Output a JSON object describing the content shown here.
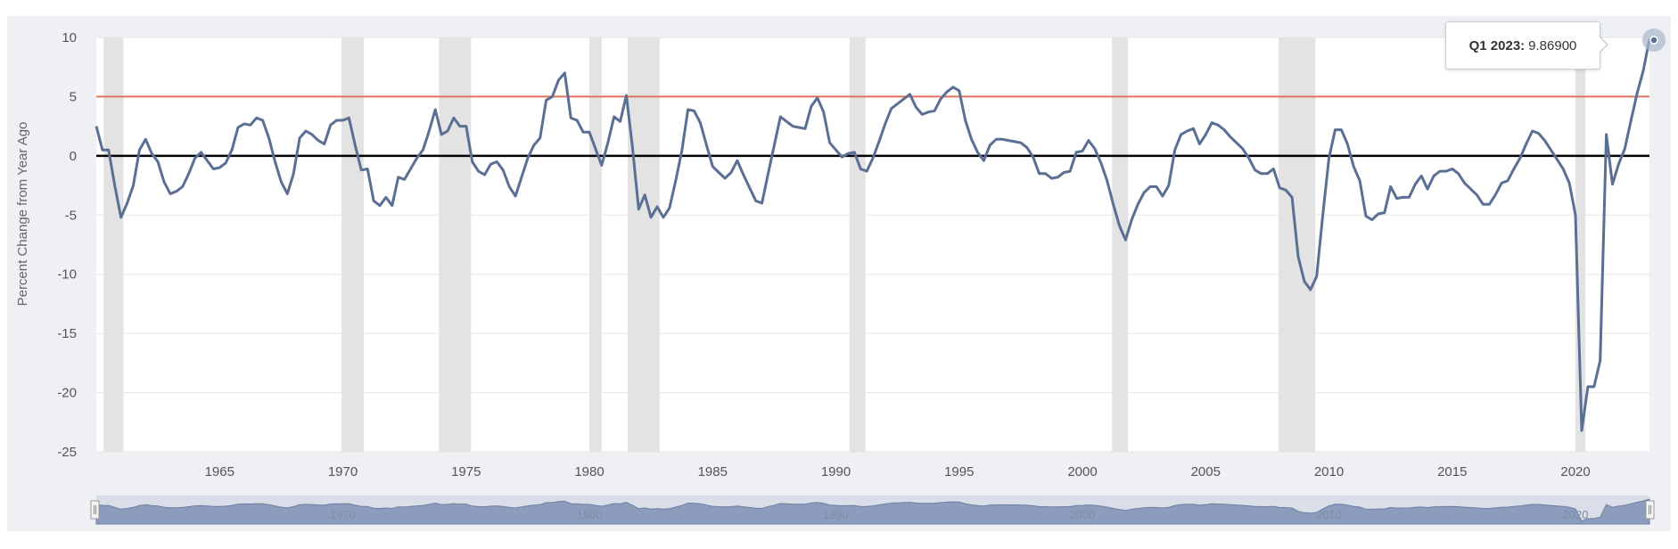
{
  "chart_data": {
    "type": "line",
    "title": "",
    "xlabel": "",
    "ylabel": "Percent Change from Year Ago",
    "ylim": [
      -25,
      10
    ],
    "xlim": [
      1960.0,
      2023.0
    ],
    "yticks": [
      "10",
      "5",
      "0",
      "-5",
      "-10",
      "-15",
      "-20",
      "-25"
    ],
    "xticks": [
      "1965",
      "1970",
      "1975",
      "1980",
      "1985",
      "1990",
      "1995",
      "2000",
      "2005",
      "2010",
      "2015",
      "2020"
    ],
    "navigator_labels": [
      "1970",
      "1980",
      "1990",
      "2000",
      "2010",
      "2020"
    ],
    "grid": "horizontal",
    "legend": "none",
    "reference_lines": [
      {
        "y": 5,
        "color": "#e0735e"
      },
      {
        "y": 0,
        "color": "#000000"
      }
    ],
    "recessions": [
      [
        1960.3,
        1961.1
      ],
      [
        1969.95,
        1970.85
      ],
      [
        1973.9,
        1975.2
      ],
      [
        1980.0,
        1980.5
      ],
      [
        1981.55,
        1982.85
      ],
      [
        1990.55,
        1991.2
      ],
      [
        2001.2,
        2001.85
      ],
      [
        2007.95,
        2009.45
      ],
      [
        2020.0,
        2020.4
      ]
    ],
    "series": [
      {
        "color": "#5b6f94",
        "x": [
          1960.0,
          1960.25,
          1960.5,
          1960.75,
          1961.0,
          1961.25,
          1961.5,
          1961.75,
          1962.0,
          1962.25,
          1962.5,
          1962.75,
          1963.0,
          1963.25,
          1963.5,
          1963.75,
          1964.0,
          1964.25,
          1964.5,
          1964.75,
          1965.0,
          1965.25,
          1965.5,
          1965.75,
          1966.0,
          1966.25,
          1966.5,
          1966.75,
          1967.0,
          1967.25,
          1967.5,
          1967.75,
          1968.0,
          1968.25,
          1968.5,
          1968.75,
          1969.0,
          1969.25,
          1969.5,
          1969.75,
          1970.0,
          1970.25,
          1970.5,
          1970.75,
          1971.0,
          1971.25,
          1971.5,
          1971.75,
          1972.0,
          1972.25,
          1972.5,
          1972.75,
          1973.0,
          1973.25,
          1973.5,
          1973.75,
          1974.0,
          1974.25,
          1974.5,
          1974.75,
          1975.0,
          1975.25,
          1975.5,
          1975.75,
          1976.0,
          1976.25,
          1976.5,
          1976.75,
          1977.0,
          1977.25,
          1977.5,
          1977.75,
          1978.0,
          1978.25,
          1978.5,
          1978.75,
          1979.0,
          1979.25,
          1979.5,
          1979.75,
          1980.0,
          1980.25,
          1980.5,
          1980.75,
          1981.0,
          1981.25,
          1981.5,
          1981.75,
          1982.0,
          1982.25,
          1982.5,
          1982.75,
          1983.0,
          1983.25,
          1983.5,
          1983.75,
          1984.0,
          1984.25,
          1984.5,
          1984.75,
          1985.0,
          1985.25,
          1985.5,
          1985.75,
          1986.0,
          1986.25,
          1986.5,
          1986.75,
          1987.0,
          1987.25,
          1987.5,
          1987.75,
          1988.0,
          1988.25,
          1988.5,
          1988.75,
          1989.0,
          1989.25,
          1989.5,
          1989.75,
          1990.0,
          1990.25,
          1990.5,
          1990.75,
          1991.0,
          1991.25,
          1991.5,
          1991.75,
          1992.0,
          1992.25,
          1992.5,
          1992.75,
          1993.0,
          1993.25,
          1993.5,
          1993.75,
          1994.0,
          1994.25,
          1994.5,
          1994.75,
          1995.0,
          1995.25,
          1995.5,
          1995.75,
          1996.0,
          1996.25,
          1996.5,
          1996.75,
          1997.0,
          1997.25,
          1997.5,
          1997.75,
          1998.0,
          1998.25,
          1998.5,
          1998.75,
          1999.0,
          1999.25,
          1999.5,
          1999.75,
          2000.0,
          2000.25,
          2000.5,
          2000.75,
          2001.0,
          2001.25,
          2001.5,
          2001.75,
          2002.0,
          2002.25,
          2002.5,
          2002.75,
          2003.0,
          2003.25,
          2003.5,
          2003.75,
          2004.0,
          2004.25,
          2004.5,
          2004.75,
          2005.0,
          2005.25,
          2005.5,
          2005.75,
          2006.0,
          2006.25,
          2006.5,
          2006.75,
          2007.0,
          2007.25,
          2007.5,
          2007.75,
          2008.0,
          2008.25,
          2008.5,
          2008.75,
          2009.0,
          2009.25,
          2009.5,
          2009.75,
          2010.0,
          2010.25,
          2010.5,
          2010.75,
          2011.0,
          2011.25,
          2011.5,
          2011.75,
          2012.0,
          2012.25,
          2012.5,
          2012.75,
          2013.0,
          2013.25,
          2013.5,
          2013.75,
          2014.0,
          2014.25,
          2014.5,
          2014.75,
          2015.0,
          2015.25,
          2015.5,
          2015.75,
          2016.0,
          2016.25,
          2016.5,
          2016.75,
          2017.0,
          2017.25,
          2017.5,
          2017.75,
          2018.0,
          2018.25,
          2018.5,
          2018.75,
          2019.0,
          2019.25,
          2019.5,
          2019.75,
          2020.0,
          2020.25,
          2020.5,
          2020.75,
          2021.0,
          2021.25,
          2021.5,
          2021.75,
          2022.0,
          2022.25,
          2022.5,
          2022.75,
          2023.0
        ],
        "values": [
          2.5,
          0.5,
          0.5,
          -2.5,
          -5.2,
          -4.0,
          -2.5,
          0.5,
          1.4,
          0.2,
          -0.5,
          -2.2,
          -3.2,
          -3.0,
          -2.6,
          -1.5,
          -0.2,
          0.3,
          -0.4,
          -1.1,
          -1.0,
          -0.6,
          0.5,
          2.4,
          2.7,
          2.6,
          3.2,
          3.0,
          1.5,
          -0.5,
          -2.2,
          -3.2,
          -1.5,
          1.5,
          2.1,
          1.8,
          1.3,
          1.0,
          2.6,
          3.0,
          3.0,
          3.2,
          0.9,
          -1.2,
          -1.1,
          -3.8,
          -4.2,
          -3.5,
          -4.2,
          -1.8,
          -2.0,
          -1.1,
          -0.2,
          0.5,
          2.1,
          3.9,
          1.8,
          2.1,
          3.2,
          2.5,
          2.5,
          -0.5,
          -1.3,
          -1.6,
          -0.7,
          -0.5,
          -1.2,
          -2.6,
          -3.4,
          -1.8,
          -0.2,
          0.9,
          1.5,
          4.7,
          5.0,
          6.4,
          7.0,
          3.2,
          3.0,
          2.0,
          2.0,
          0.6,
          -0.8,
          1.1,
          3.3,
          2.9,
          5.1,
          0.7,
          -4.5,
          -3.3,
          -5.2,
          -4.3,
          -5.2,
          -4.4,
          -2.1,
          0.4,
          3.9,
          3.8,
          2.8,
          0.9,
          -0.9,
          -1.4,
          -1.9,
          -1.4,
          -0.4,
          -1.6,
          -2.7,
          -3.8,
          -4.0,
          -1.5,
          0.9,
          3.3,
          2.9,
          2.5,
          2.4,
          2.3,
          4.2,
          4.9,
          3.7,
          1.1,
          0.5,
          -0.1,
          0.2,
          0.3,
          -1.1,
          -1.3,
          -0.2,
          1.2,
          2.7,
          4.0,
          4.4,
          4.8,
          5.2,
          4.1,
          3.5,
          3.7,
          3.8,
          4.8,
          5.4,
          5.8,
          5.5,
          3.0,
          1.4,
          0.3,
          -0.4,
          0.9,
          1.4,
          1.4,
          1.3,
          1.2,
          1.1,
          0.7,
          -0.1,
          -1.5,
          -1.5,
          -1.9,
          -1.8,
          -1.4,
          -1.3,
          0.3,
          0.4,
          1.3,
          0.6,
          -0.6,
          -2.1,
          -4.1,
          -5.9,
          -7.1,
          -5.4,
          -4.1,
          -3.1,
          -2.6,
          -2.6,
          -3.4,
          -2.5,
          0.5,
          1.8,
          2.1,
          2.3,
          1.0,
          1.8,
          2.8,
          2.6,
          2.2,
          1.6,
          1.1,
          0.6,
          -0.2,
          -1.2,
          -1.5,
          -1.5,
          -1.1,
          -2.7,
          -2.9,
          -3.5,
          -8.5,
          -10.6,
          -11.3,
          -10.2,
          -5.0,
          -0.2,
          2.2,
          2.2,
          1.0,
          -0.9,
          -2.1,
          -5.1,
          -5.4,
          -4.9,
          -4.8,
          -2.6,
          -3.6,
          -3.5,
          -3.5,
          -2.4,
          -1.7,
          -2.8,
          -1.7,
          -1.3,
          -1.3,
          -1.1,
          -1.5,
          -2.3,
          -2.8,
          -3.3,
          -4.1,
          -4.1,
          -3.3,
          -2.3,
          -2.1,
          -1.1,
          -0.2,
          1.0,
          2.1,
          1.9,
          1.3,
          0.5,
          -0.3,
          -1.1,
          -2.3,
          -5.0,
          -23.2,
          -19.5,
          -19.5,
          -17.3,
          1.8,
          -2.4,
          -0.7,
          0.6,
          3.0,
          5.3,
          7.2,
          9.869
        ]
      }
    ],
    "tooltip": {
      "label": "Q1 2023:",
      "value": "9.86900"
    }
  }
}
